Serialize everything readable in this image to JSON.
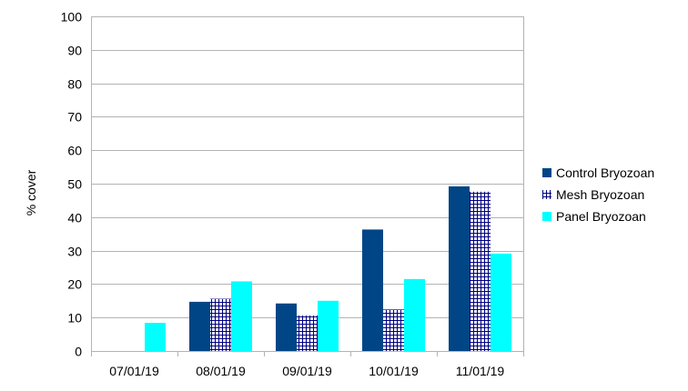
{
  "chart_data": {
    "type": "bar",
    "title": "",
    "xlabel": "",
    "ylabel": "% cover",
    "ylim": [
      0,
      100
    ],
    "yticks": [
      0,
      10,
      20,
      30,
      40,
      50,
      60,
      70,
      80,
      90,
      100
    ],
    "grid": "horizontal major gridlines",
    "legend_position": "right",
    "categories": [
      "07/01/19",
      "08/01/19",
      "09/01/19",
      "10/01/19",
      "11/01/19"
    ],
    "series": [
      {
        "name": "Control Bryozoan",
        "color": "#004586",
        "pattern": "solid",
        "values": [
          0,
          14.7,
          14.2,
          36.3,
          49.2
        ]
      },
      {
        "name": "Mesh Bryozoan",
        "color": "#000080",
        "pattern": "crosshatch",
        "values": [
          0,
          15.6,
          10.6,
          12.4,
          47.6
        ]
      },
      {
        "name": "Panel Bryozoan",
        "color": "#00ffff",
        "pattern": "solid",
        "values": [
          8.4,
          20.8,
          15.0,
          21.5,
          29.1
        ]
      }
    ]
  }
}
